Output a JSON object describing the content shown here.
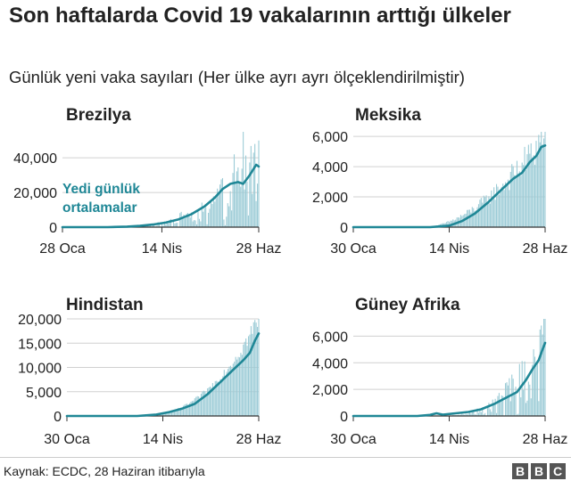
{
  "header": {
    "title": "Son haftalarda Covid 19 vakalarının arttığı ülkeler",
    "subtitle": "Günlük yeni vaka sayıları (Her ülke ayrı ayrı ölçeklendirilmiştir)"
  },
  "footer": {
    "source": "Kaynak: ECDC, 28 Haziran itibarıyla",
    "logo_letters": [
      "B",
      "B",
      "C"
    ]
  },
  "colors": {
    "bar": "#9bcbd6",
    "line": "#1f8796",
    "grid": "#d0d0d0",
    "axis": "#333333"
  },
  "chart_data": [
    {
      "type": "bar",
      "name": "Brezilya",
      "title": "Brezilya",
      "xlabel": "",
      "ylabel": "",
      "x_range": [
        0,
        152
      ],
      "xticks": [
        {
          "x": 0,
          "label": "28 Oca"
        },
        {
          "x": 77,
          "label": "14 Nis"
        },
        {
          "x": 152,
          "label": "28 Haz"
        }
      ],
      "ylim": [
        0,
        55000
      ],
      "yticks": [
        {
          "v": 0,
          "label": "0"
        },
        {
          "v": 20000,
          "label": "20,000"
        },
        {
          "v": 40000,
          "label": "40,000"
        }
      ],
      "annotation": [
        "Yedi günlük",
        "ortalamalar"
      ],
      "series": [
        {
          "name": "Günlük vaka",
          "kind": "bar",
          "smooth": false,
          "start": 40,
          "end": 152,
          "peak": 38000,
          "exp": 2.5,
          "noise": 0.5,
          "spikes": [
            [
              140,
              55000
            ],
            [
              149,
              48000
            ],
            [
              133,
              42000
            ]
          ]
        },
        {
          "name": "Yedi günlük ortalama",
          "kind": "line",
          "points": [
            [
              0,
              0
            ],
            [
              35,
              0
            ],
            [
              50,
              300
            ],
            [
              60,
              700
            ],
            [
              70,
              1500
            ],
            [
              80,
              2600
            ],
            [
              90,
              4500
            ],
            [
              100,
              7500
            ],
            [
              110,
              12000
            ],
            [
              118,
              17000
            ],
            [
              124,
              22000
            ],
            [
              130,
              25000
            ],
            [
              136,
              26000
            ],
            [
              140,
              25000
            ],
            [
              145,
              30000
            ],
            [
              150,
              36000
            ],
            [
              152,
              35000
            ]
          ]
        }
      ]
    },
    {
      "type": "bar",
      "name": "Meksika",
      "title": "Meksika",
      "xlabel": "",
      "ylabel": "",
      "x_range": [
        0,
        150
      ],
      "xticks": [
        {
          "x": 0,
          "label": "30 Oca"
        },
        {
          "x": 75,
          "label": "14 Nis"
        },
        {
          "x": 150,
          "label": "28 Haz"
        }
      ],
      "ylim": [
        0,
        6300
      ],
      "yticks": [
        {
          "v": 0,
          "label": "0"
        },
        {
          "v": 2000,
          "label": "2,000"
        },
        {
          "v": 4000,
          "label": "4,000"
        },
        {
          "v": 6000,
          "label": "6,000"
        }
      ],
      "series": [
        {
          "name": "Günlük vaka",
          "kind": "bar",
          "smooth": true,
          "start": 55,
          "end": 150,
          "peak": 6000,
          "exp": 1.8,
          "noise": 0.25,
          "spikes": [
            [
              147,
              6300
            ],
            [
              145,
              6100
            ]
          ]
        },
        {
          "name": "Yedi günlük ortalama",
          "kind": "line",
          "points": [
            [
              0,
              0
            ],
            [
              60,
              0
            ],
            [
              75,
              100
            ],
            [
              85,
              400
            ],
            [
              95,
              900
            ],
            [
              105,
              1600
            ],
            [
              115,
              2400
            ],
            [
              125,
              3200
            ],
            [
              132,
              3600
            ],
            [
              138,
              4300
            ],
            [
              143,
              4700
            ],
            [
              147,
              5300
            ],
            [
              150,
              5400
            ]
          ]
        }
      ]
    },
    {
      "type": "bar",
      "name": "Hindistan",
      "title": "Hindistan",
      "xlabel": "",
      "ylabel": "",
      "x_range": [
        0,
        150
      ],
      "xticks": [
        {
          "x": 0,
          "label": "30 Oca"
        },
        {
          "x": 75,
          "label": "14 Nis"
        },
        {
          "x": 150,
          "label": "28 Haz"
        }
      ],
      "ylim": [
        0,
        20000
      ],
      "yticks": [
        {
          "v": 0,
          "label": "0"
        },
        {
          "v": 5000,
          "label": "5,000"
        },
        {
          "v": 10000,
          "label": "10,000"
        },
        {
          "v": 15000,
          "label": "15,000"
        },
        {
          "v": 20000,
          "label": "20,000"
        }
      ],
      "series": [
        {
          "name": "Günlük vaka",
          "kind": "bar",
          "smooth": true,
          "start": 55,
          "end": 150,
          "peak": 20000,
          "exp": 2.4,
          "noise": 0.12,
          "spikes": [
            [
              150,
              20000
            ]
          ]
        },
        {
          "name": "Yedi günlük ortalama",
          "kind": "line",
          "points": [
            [
              0,
              0
            ],
            [
              55,
              0
            ],
            [
              70,
              300
            ],
            [
              80,
              800
            ],
            [
              90,
              1500
            ],
            [
              100,
              2500
            ],
            [
              110,
              4500
            ],
            [
              120,
              7000
            ],
            [
              130,
              9500
            ],
            [
              138,
              11500
            ],
            [
              143,
              13000
            ],
            [
              147,
              15500
            ],
            [
              150,
              17000
            ]
          ]
        }
      ]
    },
    {
      "type": "bar",
      "name": "Güney Afrika",
      "title": "Güney Afrika",
      "xlabel": "",
      "ylabel": "",
      "x_range": [
        0,
        150
      ],
      "xticks": [
        {
          "x": 0,
          "label": "30 Oca"
        },
        {
          "x": 75,
          "label": "14 Nis"
        },
        {
          "x": 150,
          "label": "28 Haz"
        }
      ],
      "ylim": [
        0,
        7300
      ],
      "yticks": [
        {
          "v": 0,
          "label": "0"
        },
        {
          "v": 2000,
          "label": "2,000"
        },
        {
          "v": 4000,
          "label": "4,000"
        },
        {
          "v": 6000,
          "label": "6,000"
        }
      ],
      "series": [
        {
          "name": "Günlük vaka",
          "kind": "bar",
          "smooth": false,
          "start": 55,
          "end": 150,
          "peak": 6500,
          "exp": 3.5,
          "noise": 0.45,
          "spikes": [
            [
              149,
              7300
            ],
            [
              147,
              6800
            ],
            [
              146,
              6500
            ]
          ]
        },
        {
          "name": "Yedi günlük ortalama",
          "kind": "line",
          "points": [
            [
              0,
              0
            ],
            [
              50,
              0
            ],
            [
              60,
              80
            ],
            [
              65,
              200
            ],
            [
              70,
              100
            ],
            [
              80,
              200
            ],
            [
              90,
              300
            ],
            [
              100,
              500
            ],
            [
              110,
              900
            ],
            [
              120,
              1400
            ],
            [
              128,
              1800
            ],
            [
              135,
              2700
            ],
            [
              140,
              3500
            ],
            [
              145,
              4200
            ],
            [
              148,
              5000
            ],
            [
              150,
              5500
            ]
          ]
        }
      ]
    }
  ]
}
